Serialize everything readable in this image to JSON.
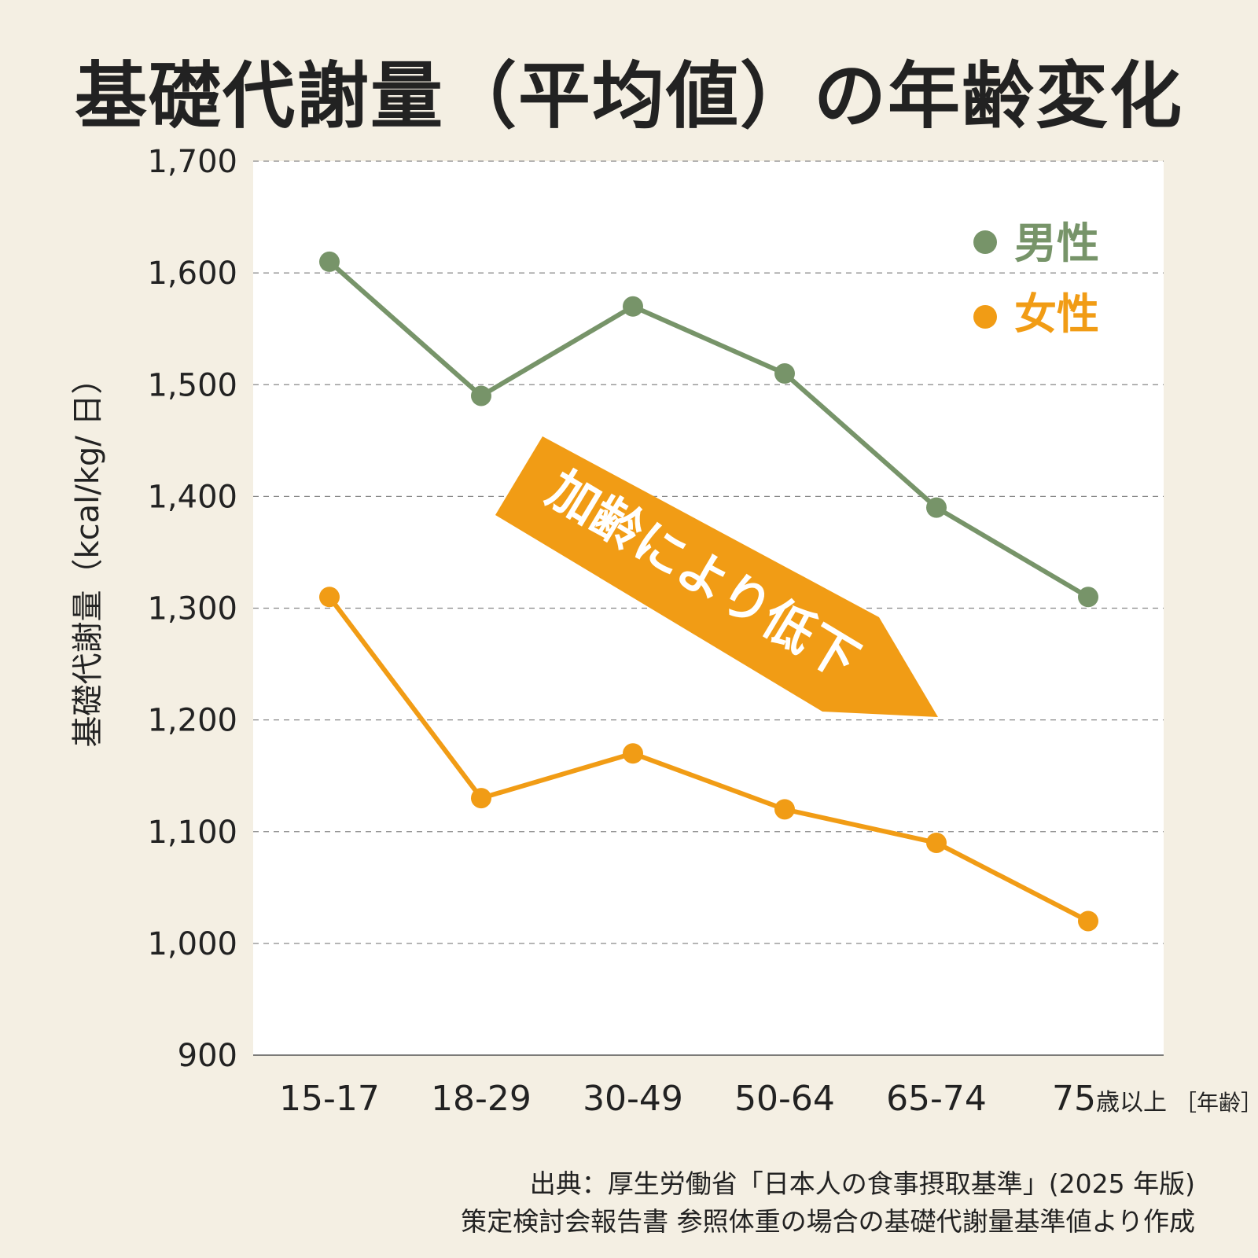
{
  "title": "基礎代謝量（平均値）の年齢変化",
  "chart_data": {
    "type": "line",
    "title": "基礎代謝量（平均値）の年齢変化",
    "ylabel": "基礎代謝量（kcal/kg/ 日）",
    "xlabel": "［年齢］",
    "ylim": [
      900,
      1700
    ],
    "yticks": [
      900,
      1000,
      1100,
      1200,
      1300,
      1400,
      1500,
      1600,
      1700
    ],
    "ytick_labels": [
      "900",
      "1,000",
      "1,100",
      "1,200",
      "1,300",
      "1,400",
      "1,500",
      "1,600",
      "1,700"
    ],
    "categories": [
      "15-17",
      "18-29",
      "30-49",
      "50-64",
      "65-74",
      "75"
    ],
    "last_category_suffix": "歳以上",
    "grid": true,
    "legend_position": "top-right",
    "series": [
      {
        "name": "男性",
        "color": "#779469",
        "values": [
          1610,
          1490,
          1570,
          1510,
          1390,
          1310
        ]
      },
      {
        "name": "女性",
        "color": "#f19c15",
        "values": [
          1310,
          1130,
          1170,
          1120,
          1090,
          1020
        ]
      }
    ],
    "annotation": {
      "text": "加齢により低下",
      "color": "#f19c15"
    }
  },
  "source": {
    "line1": "出典：厚生労働省「日本人の食事摂取基準」(2025 年版)",
    "line2": "策定検討会報告書 参照体重の場合の基礎代謝量基準値より作成"
  }
}
